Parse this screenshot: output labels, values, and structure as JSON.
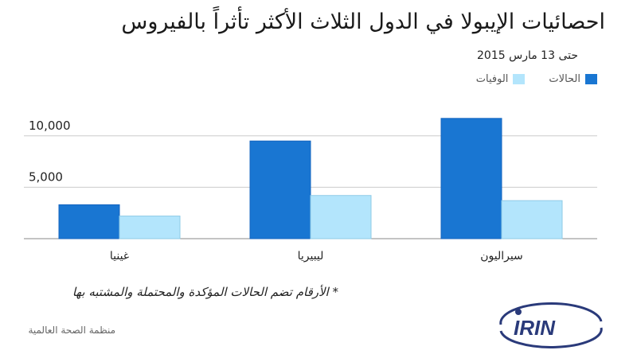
{
  "title": "احصائيات الإيبولا في الدول الثلاث الأكثر تأثراً بالفيروس",
  "subtitle": "حتى 13 مارس 2015",
  "footnote": "* الأرقام تضم الحالات المؤكدة والمحتملة والمشتبه بها",
  "source": "منظمة الصحة العالمية",
  "logo_text": "IRIN",
  "colors": {
    "cases": "#1976d2",
    "deaths": "#b3e5fc",
    "grid": "#cccccc",
    "axis": "#888888"
  },
  "chart_data": {
    "type": "bar",
    "categories": [
      "غينيا",
      "ليبيريا",
      "سيراليون"
    ],
    "series": [
      {
        "name": "الحالات",
        "values": [
          3300,
          9500,
          11700
        ]
      },
      {
        "name": "الوفيات",
        "values": [
          2200,
          4200,
          3700
        ]
      }
    ],
    "yticks": [
      5000,
      10000
    ],
    "ytick_labels": [
      "5,000",
      "10,000"
    ],
    "ylim": [
      0,
      13000
    ],
    "grid": true,
    "legend_position": "top-right",
    "xlabel": "",
    "ylabel": ""
  }
}
